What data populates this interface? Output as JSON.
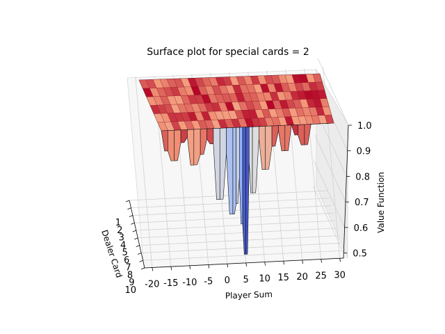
{
  "chart_data": {
    "type": "surface3d",
    "title": "Surface plot for special cards = 2",
    "xlabel": "Player Sum",
    "ylabel": "Dealer Card",
    "zlabel": "Value Function",
    "x_ticks": [
      -20,
      -15,
      -10,
      -5,
      0,
      5,
      10,
      15,
      20,
      25,
      30
    ],
    "y_ticks": [
      1,
      2,
      3,
      4,
      5,
      6,
      7,
      8,
      9,
      10
    ],
    "z_ticks": [
      "0.5",
      "0.6",
      "0.7",
      "0.8",
      "0.9",
      "1.0"
    ],
    "xlim": [
      -22,
      31
    ],
    "ylim": [
      1,
      10
    ],
    "zlim": [
      0.48,
      1.0
    ],
    "colormap": "coolwarm",
    "grid": true,
    "z_profile_at_front_edge": {
      "x": [
        -22,
        -20,
        -18,
        -16,
        -14,
        -12,
        -10,
        -8,
        -6,
        -4,
        -2,
        0,
        1,
        2,
        3,
        4,
        5,
        6,
        8,
        10,
        12,
        14,
        16,
        18,
        20,
        22,
        24,
        26,
        28,
        30
      ],
      "z": [
        1.0,
        0.92,
        0.88,
        0.95,
        0.97,
        0.86,
        0.9,
        0.96,
        0.94,
        0.72,
        0.9,
        0.66,
        0.7,
        0.8,
        0.62,
        0.5,
        0.86,
        0.74,
        0.95,
        0.83,
        0.92,
        0.98,
        0.9,
        1.0,
        0.96,
        0.92,
        1.0,
        1.0,
        1.0,
        1.0
      ]
    }
  }
}
